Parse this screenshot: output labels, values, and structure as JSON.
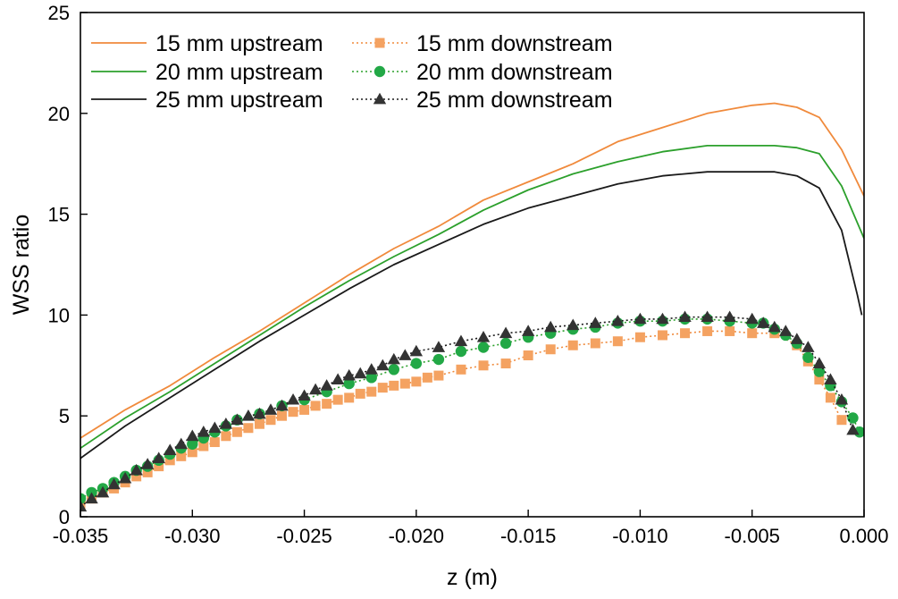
{
  "chart_data": {
    "type": "line",
    "xlabel": "z (m)",
    "ylabel": "WSS ratio",
    "xlim": [
      -0.035,
      0.0
    ],
    "ylim": [
      0,
      25
    ],
    "xticks": [
      -0.035,
      -0.03,
      -0.025,
      -0.02,
      -0.015,
      -0.01,
      -0.005,
      0.0
    ],
    "xtick_labels": [
      "-0.035",
      "-0.030",
      "-0.025",
      "-0.020",
      "-0.015",
      "-0.010",
      "-0.005",
      "0.000"
    ],
    "yticks": [
      0,
      5,
      10,
      15,
      20,
      25
    ],
    "ytick_labels": [
      "0",
      "5",
      "10",
      "15",
      "20",
      "25"
    ],
    "grid": false,
    "legend_position": "top-left",
    "series": [
      {
        "name": "15 mm upstream",
        "style": "solid",
        "marker": "none",
        "color": "#F08A3C",
        "x": [
          -0.035,
          -0.033,
          -0.031,
          -0.029,
          -0.027,
          -0.025,
          -0.023,
          -0.021,
          -0.019,
          -0.017,
          -0.015,
          -0.013,
          -0.011,
          -0.009,
          -0.007,
          -0.005,
          -0.004,
          -0.003,
          -0.002,
          -0.001,
          0.0
        ],
        "y": [
          3.9,
          5.3,
          6.5,
          7.9,
          9.2,
          10.6,
          12.0,
          13.3,
          14.4,
          15.7,
          16.6,
          17.5,
          18.6,
          19.3,
          20.0,
          20.4,
          20.5,
          20.3,
          19.8,
          18.2,
          15.9
        ]
      },
      {
        "name": "20 mm upstream",
        "style": "solid",
        "marker": "none",
        "color": "#2CA02C",
        "x": [
          -0.035,
          -0.033,
          -0.031,
          -0.029,
          -0.027,
          -0.025,
          -0.023,
          -0.021,
          -0.019,
          -0.017,
          -0.015,
          -0.013,
          -0.011,
          -0.009,
          -0.007,
          -0.005,
          -0.004,
          -0.003,
          -0.002,
          -0.001,
          0.0
        ],
        "y": [
          3.4,
          4.9,
          6.2,
          7.6,
          9.0,
          10.4,
          11.7,
          12.9,
          14.0,
          15.2,
          16.2,
          17.0,
          17.6,
          18.1,
          18.4,
          18.4,
          18.4,
          18.3,
          18.0,
          16.4,
          13.8
        ]
      },
      {
        "name": "25 mm upstream",
        "style": "solid",
        "marker": "none",
        "color": "#1A1A1A",
        "x": [
          -0.035,
          -0.033,
          -0.031,
          -0.029,
          -0.027,
          -0.025,
          -0.023,
          -0.021,
          -0.019,
          -0.017,
          -0.015,
          -0.013,
          -0.011,
          -0.009,
          -0.007,
          -0.005,
          -0.004,
          -0.003,
          -0.002,
          -0.001,
          -0.0003,
          -0.0001
        ],
        "y": [
          2.9,
          4.5,
          5.9,
          7.3,
          8.7,
          10.0,
          11.3,
          12.5,
          13.5,
          14.5,
          15.3,
          15.9,
          16.5,
          16.9,
          17.1,
          17.1,
          17.1,
          16.9,
          16.3,
          14.2,
          11.0,
          10.0
        ]
      },
      {
        "name": "15 mm downstream",
        "style": "dotted",
        "marker": "square",
        "color": "#F4A261",
        "line_color": "#F08A3C",
        "x": [
          -0.035,
          -0.0345,
          -0.034,
          -0.0335,
          -0.033,
          -0.0325,
          -0.032,
          -0.0315,
          -0.031,
          -0.0305,
          -0.03,
          -0.0295,
          -0.029,
          -0.0285,
          -0.028,
          -0.0275,
          -0.027,
          -0.0265,
          -0.026,
          -0.0255,
          -0.025,
          -0.0245,
          -0.024,
          -0.0235,
          -0.023,
          -0.0225,
          -0.022,
          -0.0215,
          -0.021,
          -0.0205,
          -0.02,
          -0.0195,
          -0.019,
          -0.018,
          -0.017,
          -0.016,
          -0.015,
          -0.014,
          -0.013,
          -0.012,
          -0.011,
          -0.01,
          -0.009,
          -0.008,
          -0.007,
          -0.006,
          -0.005,
          -0.004,
          -0.003,
          -0.0025,
          -0.002,
          -0.0015,
          -0.001
        ],
        "y": [
          0.6,
          0.9,
          1.2,
          1.4,
          1.7,
          2.0,
          2.2,
          2.5,
          2.8,
          3.0,
          3.2,
          3.5,
          3.7,
          4.0,
          4.2,
          4.4,
          4.6,
          4.8,
          5.0,
          5.2,
          5.3,
          5.5,
          5.6,
          5.8,
          5.9,
          6.1,
          6.2,
          6.4,
          6.5,
          6.6,
          6.7,
          6.9,
          7.0,
          7.3,
          7.5,
          7.6,
          8.0,
          8.3,
          8.5,
          8.6,
          8.7,
          8.9,
          9.0,
          9.1,
          9.2,
          9.2,
          9.1,
          9.1,
          8.5,
          7.7,
          6.8,
          5.9,
          4.8
        ]
      },
      {
        "name": "20 mm downstream",
        "style": "dotted",
        "marker": "circle",
        "color": "#22A846",
        "line_color": "#2CA02C",
        "x": [
          -0.035,
          -0.0345,
          -0.034,
          -0.0335,
          -0.033,
          -0.0325,
          -0.032,
          -0.0315,
          -0.031,
          -0.0305,
          -0.03,
          -0.0295,
          -0.029,
          -0.0285,
          -0.028,
          -0.027,
          -0.026,
          -0.025,
          -0.024,
          -0.023,
          -0.022,
          -0.021,
          -0.02,
          -0.019,
          -0.018,
          -0.017,
          -0.016,
          -0.015,
          -0.014,
          -0.013,
          -0.012,
          -0.011,
          -0.01,
          -0.009,
          -0.008,
          -0.007,
          -0.006,
          -0.005,
          -0.0045,
          -0.004,
          -0.0035,
          -0.003,
          -0.0025,
          -0.002,
          -0.0015,
          -0.001,
          -0.0005,
          -0.0002
        ],
        "y": [
          0.9,
          1.2,
          1.4,
          1.7,
          2.0,
          2.3,
          2.5,
          2.8,
          3.1,
          3.4,
          3.6,
          3.9,
          4.2,
          4.5,
          4.8,
          5.1,
          5.5,
          5.8,
          6.2,
          6.6,
          6.9,
          7.3,
          7.6,
          7.8,
          8.2,
          8.4,
          8.6,
          8.9,
          9.1,
          9.3,
          9.4,
          9.6,
          9.7,
          9.7,
          9.8,
          9.8,
          9.7,
          9.6,
          9.6,
          9.3,
          9.0,
          8.6,
          7.9,
          7.2,
          6.5,
          5.7,
          4.9,
          4.2
        ]
      },
      {
        "name": "25 mm downstream",
        "style": "dotted",
        "marker": "triangle",
        "color": "#333333",
        "line_color": "#1A1A1A",
        "x": [
          -0.035,
          -0.0345,
          -0.034,
          -0.0335,
          -0.033,
          -0.0325,
          -0.032,
          -0.0315,
          -0.031,
          -0.0305,
          -0.03,
          -0.0295,
          -0.029,
          -0.0285,
          -0.028,
          -0.0275,
          -0.027,
          -0.0265,
          -0.026,
          -0.0255,
          -0.025,
          -0.0245,
          -0.024,
          -0.0235,
          -0.023,
          -0.0225,
          -0.022,
          -0.0215,
          -0.021,
          -0.0205,
          -0.02,
          -0.019,
          -0.018,
          -0.017,
          -0.016,
          -0.015,
          -0.014,
          -0.013,
          -0.012,
          -0.011,
          -0.01,
          -0.009,
          -0.008,
          -0.007,
          -0.006,
          -0.005,
          -0.0045,
          -0.004,
          -0.0035,
          -0.003,
          -0.0025,
          -0.002,
          -0.0015,
          -0.001,
          -0.0005
        ],
        "y": [
          0.5,
          0.9,
          1.2,
          1.6,
          1.9,
          2.3,
          2.6,
          2.9,
          3.3,
          3.6,
          4.0,
          4.2,
          4.4,
          4.6,
          4.8,
          5.0,
          5.1,
          5.3,
          5.5,
          5.8,
          6.0,
          6.3,
          6.5,
          6.8,
          7.0,
          7.1,
          7.3,
          7.5,
          7.8,
          8.0,
          8.2,
          8.4,
          8.7,
          8.9,
          9.1,
          9.2,
          9.4,
          9.5,
          9.6,
          9.7,
          9.8,
          9.8,
          9.9,
          9.9,
          9.9,
          9.8,
          9.6,
          9.4,
          9.2,
          8.8,
          8.4,
          7.6,
          6.8,
          5.8,
          4.3
        ]
      }
    ]
  }
}
